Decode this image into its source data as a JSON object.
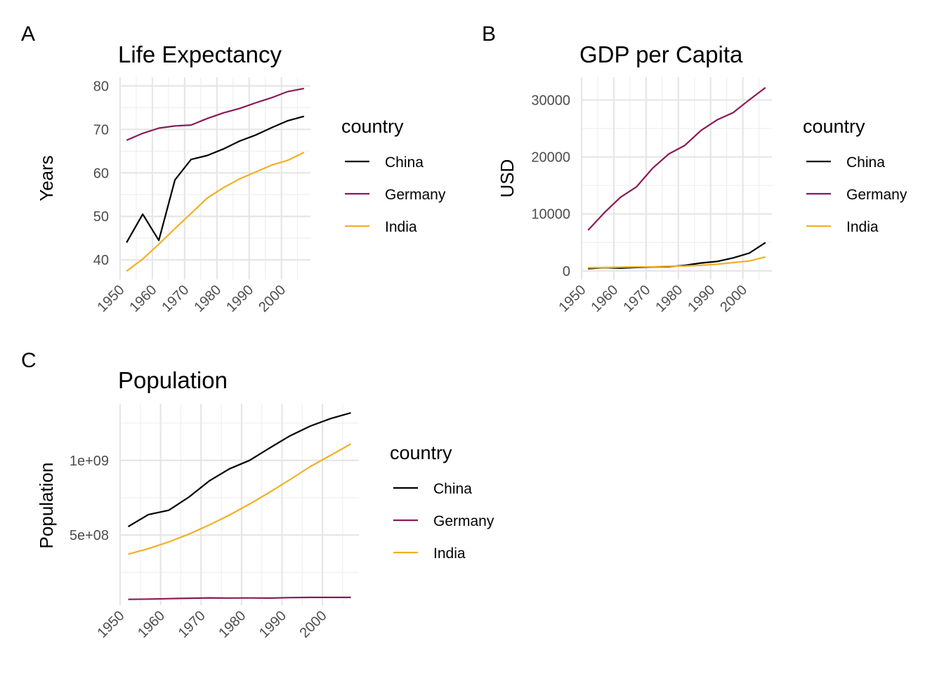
{
  "panel_tags": [
    "A",
    "B",
    "C"
  ],
  "legend_title": "country",
  "colors": {
    "China": "#000000",
    "Germany": "#8B1A56",
    "India": "#F2B024"
  },
  "chart_data": [
    {
      "type": "line",
      "panel": "A",
      "title": "Life Expectancy",
      "xlabel": "",
      "ylabel": "Years",
      "xlim": [
        1950,
        2009
      ],
      "ylim": [
        35.5,
        82
      ],
      "x_ticks": [
        1950,
        1960,
        1970,
        1980,
        1990,
        2000
      ],
      "y_ticks": [
        40,
        50,
        60,
        70,
        80
      ],
      "y_tick_labels": [
        "40",
        "50",
        "60",
        "70",
        "80"
      ],
      "legend": {
        "title": "country",
        "position": "right"
      },
      "grid": true,
      "x": [
        1952,
        1957,
        1962,
        1967,
        1972,
        1977,
        1982,
        1987,
        1992,
        1997,
        2002,
        2007
      ],
      "series": [
        {
          "name": "China",
          "values": [
            44.0,
            50.5,
            44.5,
            58.4,
            63.1,
            64.0,
            65.5,
            67.3,
            68.7,
            70.4,
            72.0,
            73.0
          ]
        },
        {
          "name": "Germany",
          "values": [
            67.5,
            69.1,
            70.3,
            70.8,
            71.0,
            72.5,
            73.8,
            74.8,
            76.1,
            77.3,
            78.7,
            79.4
          ]
        },
        {
          "name": "India",
          "values": [
            37.4,
            40.2,
            43.6,
            47.2,
            50.7,
            54.2,
            56.6,
            58.6,
            60.2,
            61.8,
            62.9,
            64.7
          ]
        }
      ]
    },
    {
      "type": "line",
      "panel": "B",
      "title": "GDP per Capita",
      "xlabel": "",
      "ylabel": "USD",
      "xlim": [
        1950,
        2009
      ],
      "ylim": [
        -1500,
        34000
      ],
      "x_ticks": [
        1950,
        1960,
        1970,
        1980,
        1990,
        2000
      ],
      "y_ticks": [
        0,
        10000,
        20000,
        30000
      ],
      "y_tick_labels": [
        "0",
        "10000",
        "20000",
        "30000"
      ],
      "legend": {
        "title": "country",
        "position": "right"
      },
      "grid": true,
      "x": [
        1952,
        1957,
        1962,
        1967,
        1972,
        1977,
        1982,
        1987,
        1992,
        1997,
        2002,
        2007
      ],
      "series": [
        {
          "name": "China",
          "values": [
            400,
            576,
            488,
            613,
            677,
            741,
            962,
            1379,
            1656,
            2290,
            3119,
            4959
          ]
        },
        {
          "name": "Germany",
          "values": [
            7144,
            10188,
            12902,
            14746,
            18016,
            20513,
            22032,
            24639,
            26505,
            27789,
            30036,
            32170
          ]
        },
        {
          "name": "India",
          "values": [
            547,
            590,
            658,
            701,
            724,
            813,
            856,
            977,
            1164,
            1459,
            1747,
            2452
          ]
        }
      ]
    },
    {
      "type": "line",
      "panel": "C",
      "title": "Population",
      "xlabel": "",
      "ylabel": "Population",
      "xlim": [
        1950,
        2009
      ],
      "ylim": [
        30000000,
        1380000000
      ],
      "x_ticks": [
        1950,
        1960,
        1970,
        1980,
        1990,
        2000
      ],
      "y_ticks": [
        500000000,
        1000000000
      ],
      "y_tick_labels": [
        "5e+08",
        "1e+09"
      ],
      "legend": {
        "title": "country",
        "position": "right"
      },
      "grid": true,
      "x": [
        1952,
        1957,
        1962,
        1967,
        1972,
        1977,
        1982,
        1987,
        1992,
        1997,
        2002,
        2007
      ],
      "series": [
        {
          "name": "China",
          "values": [
            556263527,
            637408000,
            665770000,
            754550000,
            862030000,
            943455000,
            1000281000,
            1084035000,
            1164970000,
            1230075000,
            1280400000,
            1318683096
          ]
        },
        {
          "name": "Germany",
          "values": [
            69145952,
            71019069,
            73739117,
            76368453,
            78717088,
            78160773,
            78335266,
            77718298,
            80597764,
            82011073,
            82350671,
            82400996
          ]
        },
        {
          "name": "India",
          "values": [
            372000000,
            409000000,
            454000000,
            506000000,
            567000000,
            634000000,
            708000000,
            788000000,
            872000000,
            959000000,
            1034172547,
            1110396331
          ]
        }
      ]
    }
  ]
}
